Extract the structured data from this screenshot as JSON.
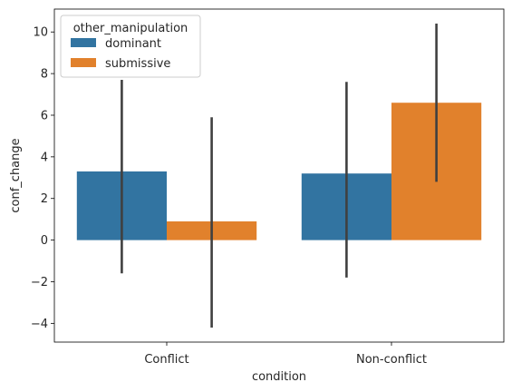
{
  "chart_data": {
    "type": "bar",
    "categories": [
      "Conflict",
      "Non-conflict"
    ],
    "series": [
      {
        "name": "dominant",
        "color": "#3274a1",
        "values": [
          3.3,
          3.2
        ],
        "ci_low": [
          -1.6,
          -1.8
        ],
        "ci_high": [
          7.7,
          7.6
        ]
      },
      {
        "name": "submissive",
        "color": "#e1812c",
        "values": [
          0.9,
          6.6
        ],
        "ci_low": [
          -4.2,
          2.8
        ],
        "ci_high": [
          5.9,
          10.4
        ]
      }
    ],
    "xlabel": "condition",
    "ylabel": "conf_change",
    "ylim": [
      -4.9,
      11.1
    ],
    "yticks": [
      -4,
      -2,
      0,
      2,
      4,
      6,
      8,
      10
    ],
    "legend": {
      "title": "other_manipulation",
      "placement": "top-left"
    },
    "grid": false,
    "error_bar_color": "#404040"
  }
}
